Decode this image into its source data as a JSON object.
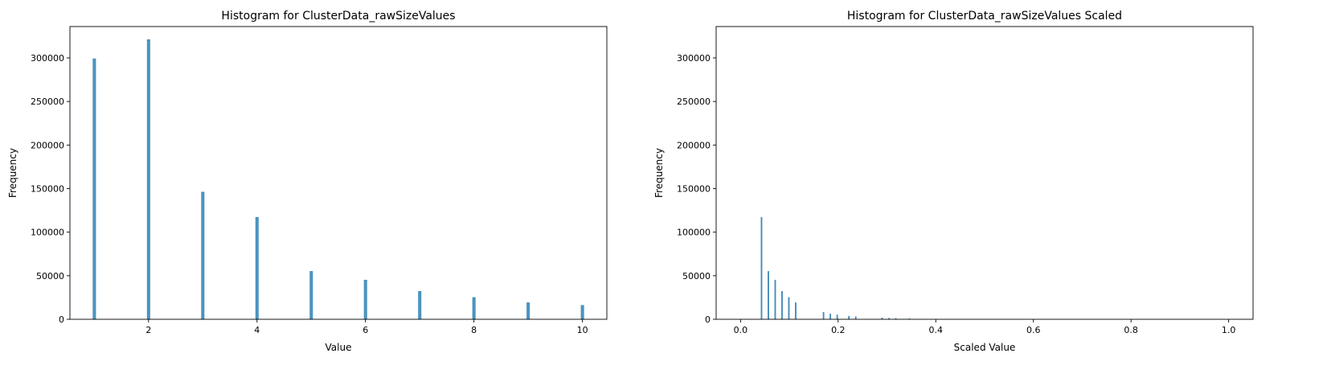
{
  "chart_data": [
    {
      "type": "bar",
      "title": "Histogram for ClusterData_rawSizeValues",
      "xlabel": "Value",
      "ylabel": "Frequency",
      "xlim": [
        0.55,
        10.45
      ],
      "ylim": [
        0,
        336000
      ],
      "xticks": [
        2,
        4,
        6,
        8,
        10
      ],
      "xtick_labels": [
        "2",
        "4",
        "6",
        "8",
        "10"
      ],
      "yticks": [
        0,
        50000,
        100000,
        150000,
        200000,
        250000,
        300000
      ],
      "ytick_labels": [
        "0",
        "50000",
        "100000",
        "150000",
        "200000",
        "250000",
        "300000"
      ],
      "bar_width": 0.05,
      "x": [
        1,
        2,
        3,
        4,
        5,
        6,
        7,
        8,
        9,
        10
      ],
      "values": [
        299000,
        321000,
        146000,
        117000,
        55000,
        45000,
        32000,
        25000,
        19000,
        16000
      ],
      "color": "#4c96c4"
    },
    {
      "type": "bar",
      "title": "Histogram for ClusterData_rawSizeValues Scaled",
      "xlabel": "Scaled Value",
      "ylabel": "Frequency",
      "xlim": [
        -0.05,
        1.05
      ],
      "ylim": [
        0,
        336000
      ],
      "xticks": [
        0.0,
        0.2,
        0.4,
        0.6,
        0.8,
        1.0
      ],
      "xtick_labels": [
        "0.0",
        "0.2",
        "0.4",
        "0.6",
        "0.8",
        "1.0"
      ],
      "yticks": [
        0,
        50000,
        100000,
        150000,
        200000,
        250000,
        300000
      ],
      "ytick_labels": [
        "0",
        "50000",
        "100000",
        "150000",
        "200000",
        "250000",
        "300000"
      ],
      "bar_width": 0.002,
      "x": [
        0.043,
        0.057,
        0.071,
        0.085,
        0.099,
        0.113,
        0.17,
        0.184,
        0.198,
        0.222,
        0.236,
        0.29,
        0.304,
        0.318,
        0.346
      ],
      "values": [
        117000,
        55000,
        45000,
        32000,
        25000,
        19000,
        8000,
        6000,
        5000,
        3500,
        3000,
        1500,
        1200,
        1000,
        800
      ],
      "color": "#4c96c4"
    }
  ]
}
